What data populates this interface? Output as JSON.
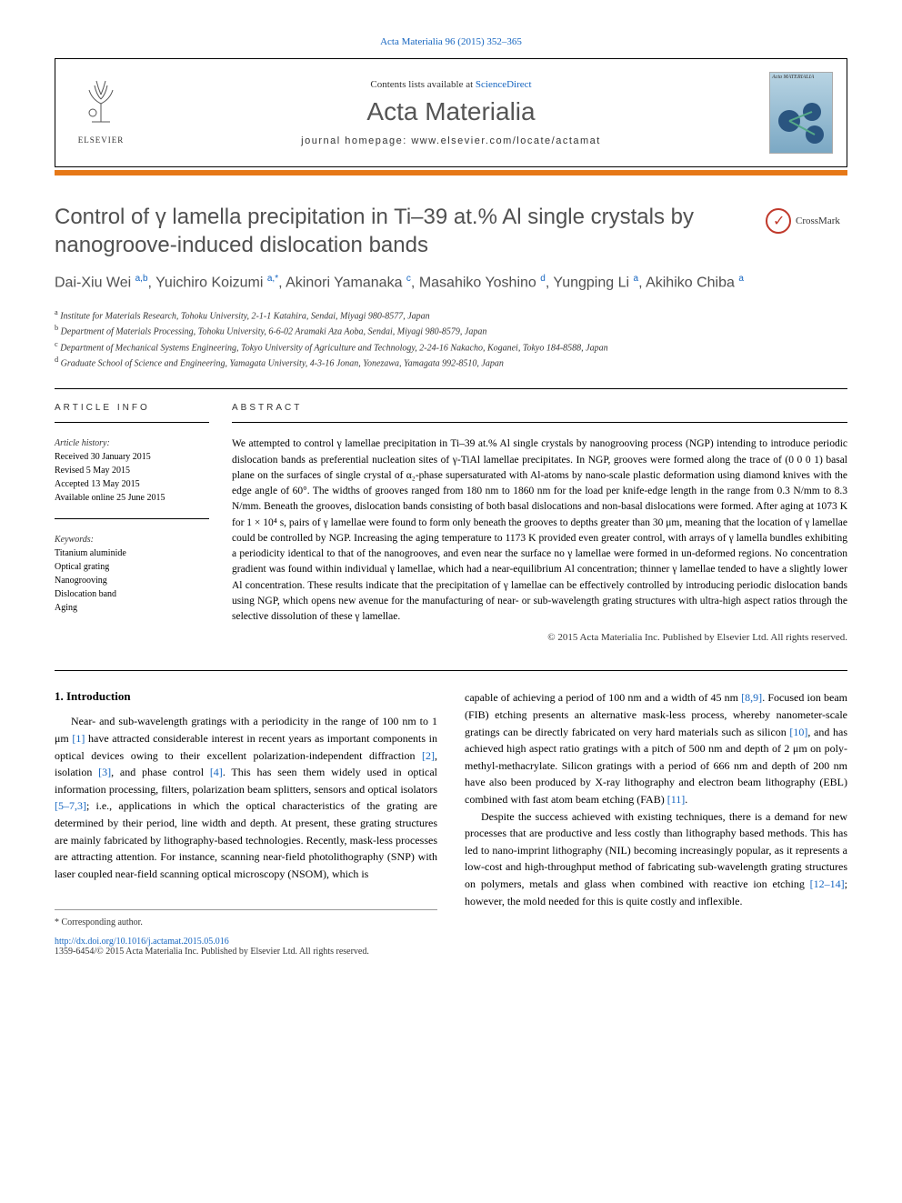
{
  "citation": "Acta Materialia 96 (2015) 352–365",
  "header": {
    "publisher": "ELSEVIER",
    "contents_prefix": "Contents lists available at ",
    "contents_link": "ScienceDirect",
    "journal_name": "Acta Materialia",
    "homepage_prefix": "journal homepage: ",
    "homepage_url": "www.elsevier.com/locate/actamat",
    "cover_text": "Acta MATERIALIA",
    "accent_color": "#e67817"
  },
  "title": "Control of γ lamella precipitation in Ti–39 at.% Al single crystals by nanogroove-induced dislocation bands",
  "crossmark_label": "CrossMark",
  "authors_html": "Dai-Xiu Wei <sup>a,b</sup>, Yuichiro Koizumi <sup>a,*</sup>, Akinori Yamanaka <sup>c</sup>, Masahiko Yoshino <sup>d</sup>, Yungping Li <sup>a</sup>, Akihiko Chiba <sup>a</sup>",
  "affiliations": [
    {
      "sup": "a",
      "text": "Institute for Materials Research, Tohoku University, 2-1-1 Katahira, Sendai, Miyagi 980-8577, Japan"
    },
    {
      "sup": "b",
      "text": "Department of Materials Processing, Tohoku University, 6-6-02 Aramaki Aza Aoba, Sendai, Miyagi 980-8579, Japan"
    },
    {
      "sup": "c",
      "text": "Department of Mechanical Systems Engineering, Tokyo University of Agriculture and Technology, 2-24-16 Nakacho, Koganei, Tokyo 184-8588, Japan"
    },
    {
      "sup": "d",
      "text": "Graduate School of Science and Engineering, Yamagata University, 4-3-16 Jonan, Yonezawa, Yamagata 992-8510, Japan"
    }
  ],
  "article_info": {
    "heading": "ARTICLE INFO",
    "history_label": "Article history:",
    "received": "Received 30 January 2015",
    "revised": "Revised 5 May 2015",
    "accepted": "Accepted 13 May 2015",
    "available": "Available online 25 June 2015",
    "keywords_label": "Keywords:",
    "keywords": [
      "Titanium aluminide",
      "Optical grating",
      "Nanogrooving",
      "Dislocation band",
      "Aging"
    ]
  },
  "abstract": {
    "heading": "ABSTRACT",
    "text": "We attempted to control γ lamellae precipitation in Ti–39 at.% Al single crystals by nanogrooving process (NGP) intending to introduce periodic dislocation bands as preferential nucleation sites of γ-TiAl lamellae precipitates. In NGP, grooves were formed along the trace of (0 0 0 1) basal plane on the surfaces of single crystal of α₂-phase supersaturated with Al-atoms by nano-scale plastic deformation using diamond knives with the edge angle of 60°. The widths of grooves ranged from 180 nm to 1860 nm for the load per knife-edge length in the range from 0.3 N/mm to 8.3 N/mm. Beneath the grooves, dislocation bands consisting of both basal dislocations and non-basal dislocations were formed. After aging at 1073 K for 1 × 10⁴ s, pairs of γ lamellae were found to form only beneath the grooves to depths greater than 30 μm, meaning that the location of γ lamellae could be controlled by NGP. Increasing the aging temperature to 1173 K provided even greater control, with arrays of γ lamella bundles exhibiting a periodicity identical to that of the nanogrooves, and even near the surface no γ lamellae were formed in un-deformed regions. No concentration gradient was found within individual γ lamellae, which had a near-equilibrium Al concentration; thinner γ lamellae tended to have a slightly lower Al concentration. These results indicate that the precipitation of γ lamellae can be effectively controlled by introducing periodic dislocation bands using NGP, which opens new avenue for the manufacturing of near- or sub-wavelength grating structures with ultra-high aspect ratios through the selective dissolution of these γ lamellae.",
    "copyright": "© 2015 Acta Materialia Inc. Published by Elsevier Ltd. All rights reserved."
  },
  "body": {
    "section_number": "1.",
    "section_title": "Introduction",
    "col1_p1_html": "Near- and sub-wavelength gratings with a periodicity in the range of 100 nm to 1 μm <a href='#'>[1]</a> have attracted considerable interest in recent years as important components in optical devices owing to their excellent polarization-independent diffraction <a href='#'>[2]</a>, isolation <a href='#'>[3]</a>, and phase control <a href='#'>[4]</a>. This has seen them widely used in optical information processing, filters, polarization beam splitters, sensors and optical isolators <a href='#'>[5–7,3]</a>; i.e., applications in which the optical characteristics of the grating are determined by their period, line width and depth. At present, these grating structures are mainly fabricated by lithography-based technologies. Recently, mask-less processes are attracting attention. For instance, scanning near-field photolithography (SNP) with laser coupled near-field scanning optical microscopy (NSOM), which is",
    "col2_p1_html": "capable of achieving a period of 100 nm and a width of 45 nm <a href='#'>[8,9]</a>. Focused ion beam (FIB) etching presents an alternative mask-less process, whereby nanometer-scale gratings can be directly fabricated on very hard materials such as silicon <a href='#'>[10]</a>, and has achieved high aspect ratio gratings with a pitch of 500 nm and depth of 2 μm on poly-methyl-methacrylate. Silicon gratings with a period of 666 nm and depth of 200 nm have also been produced by X-ray lithography and electron beam lithography (EBL) combined with fast atom beam etching (FAB) <a href='#'>[11]</a>.",
    "col2_p2_html": "Despite the success achieved with existing techniques, there is a demand for new processes that are productive and less costly than lithography based methods. This has led to nano-imprint lithography (NIL) becoming increasingly popular, as it represents a low-cost and high-throughput method of fabricating sub-wavelength grating structures on polymers, metals and glass when combined with reactive ion etching <a href='#'>[12–14]</a>; however, the mold needed for this is quite costly and inflexible."
  },
  "footer": {
    "corresponding": "* Corresponding author.",
    "doi_url": "http://dx.doi.org/10.1016/j.actamat.2015.05.016",
    "issn_copyright": "1359-6454/© 2015 Acta Materialia Inc. Published by Elsevier Ltd. All rights reserved."
  },
  "colors": {
    "link": "#1565c0",
    "accent": "#e67817",
    "heading_gray": "#505050"
  }
}
